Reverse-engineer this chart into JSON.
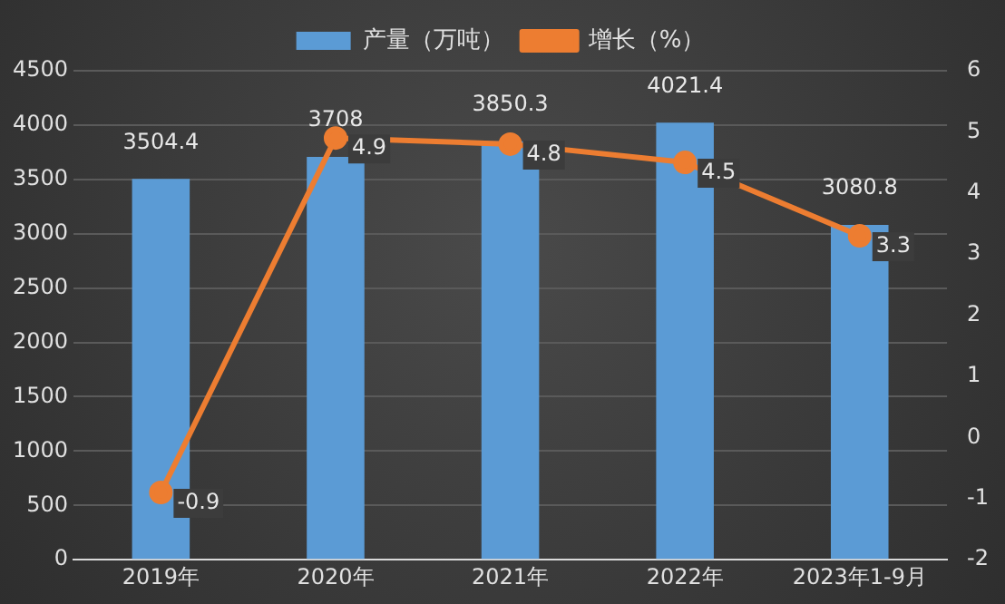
{
  "chart_data": {
    "type": "bar",
    "categories": [
      "2019年",
      "2020年",
      "2021年",
      "2022年",
      "2023年1-9月"
    ],
    "series": [
      {
        "name": "产量（万吨）",
        "color": "#5b9bd5",
        "values": [
          3504.4,
          3708,
          3850.3,
          4021.4,
          3080.8
        ]
      },
      {
        "name": "增长（%）",
        "type": "line",
        "axis": "y2",
        "color": "#ed7d31",
        "values": [
          -0.9,
          4.9,
          4.8,
          4.5,
          3.3
        ]
      }
    ],
    "ylim": [
      0,
      4500
    ],
    "yticks": [
      0,
      500,
      1000,
      1500,
      2000,
      2500,
      3000,
      3500,
      4000,
      4500
    ],
    "y2lim": [
      -2,
      6
    ],
    "y2ticks": [
      -2,
      -1,
      0,
      1,
      2,
      3,
      4,
      5,
      6
    ],
    "grid": "y",
    "legend": "top",
    "marker": "circle",
    "line_style": "solid",
    "data_labels": true
  }
}
